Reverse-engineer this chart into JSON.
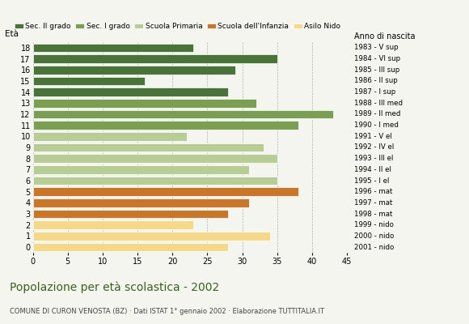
{
  "ages": [
    18,
    17,
    16,
    15,
    14,
    13,
    12,
    11,
    10,
    9,
    8,
    7,
    6,
    5,
    4,
    3,
    2,
    1,
    0
  ],
  "values": [
    23,
    35,
    29,
    16,
    28,
    32,
    43,
    38,
    22,
    33,
    35,
    31,
    35,
    38,
    31,
    28,
    23,
    34,
    28
  ],
  "years": [
    "1983 - V sup",
    "1984 - VI sup",
    "1985 - III sup",
    "1986 - II sup",
    "1987 - I sup",
    "1988 - III med",
    "1989 - II med",
    "1990 - I med",
    "1991 - V el",
    "1992 - IV el",
    "1993 - III el",
    "1994 - II el",
    "1995 - I el",
    "1996 - mat",
    "1997 - mat",
    "1998 - mat",
    "1999 - nido",
    "2000 - nido",
    "2001 - nido"
  ],
  "colors": [
    "#4a7339",
    "#4a7339",
    "#4a7339",
    "#4a7339",
    "#4a7339",
    "#7a9e52",
    "#7a9e52",
    "#7a9e52",
    "#b8cc96",
    "#b8cc96",
    "#b8cc96",
    "#b8cc96",
    "#b8cc96",
    "#c8762a",
    "#c8762a",
    "#c8762a",
    "#f5d98a",
    "#f5d98a",
    "#f5d98a"
  ],
  "legend_labels": [
    "Sec. II grado",
    "Sec. I grado",
    "Scuola Primaria",
    "Scuola dell'Infanzia",
    "Asilo Nido"
  ],
  "legend_colors": [
    "#4a7339",
    "#7a9e52",
    "#b8cc96",
    "#c8762a",
    "#f5d98a"
  ],
  "title": "Popolazione per età scolastica - 2002",
  "subtitle": "COMUNE DI CURON VENOSTA (BZ) · Dati ISTAT 1° gennaio 2002 · Elaborazione TUTTITALIA.IT",
  "eta_label": "Età",
  "anno_label": "Anno di nascita",
  "xlim": [
    0,
    45
  ],
  "xticks": [
    0,
    5,
    10,
    15,
    20,
    25,
    30,
    35,
    40,
    45
  ],
  "background_color": "#f5f5ef"
}
